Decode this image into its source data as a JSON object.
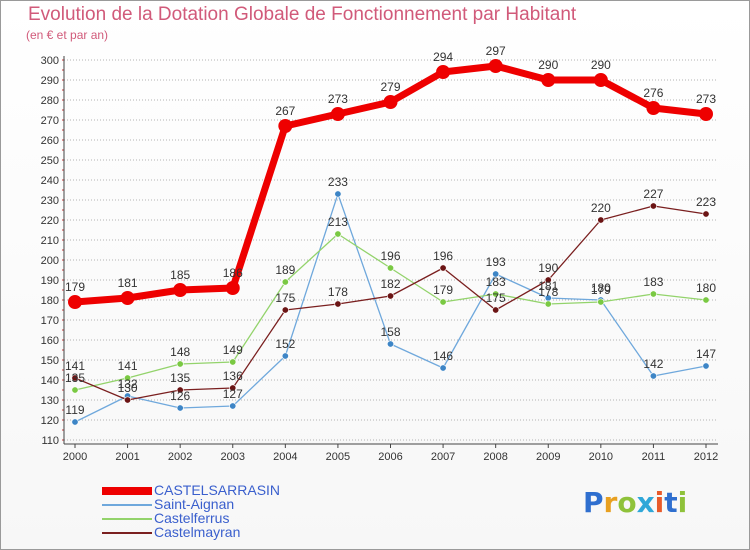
{
  "header": {
    "title": "Evolution de la Dotation Globale de Fonctionnement par Habitant",
    "subtitle": "(en € et par an)"
  },
  "logo": {
    "text": "Proxiti"
  },
  "colors": {
    "title": "#d15a7a",
    "grid": "#9a9a9a",
    "axis_text": "#333333",
    "value_text": "#333333"
  },
  "chart_data": {
    "type": "line",
    "title": "Evolution de la Dotation Globale de Fonctionnement par Habitant",
    "subtitle": "(en € et par an)",
    "xlabel": "",
    "ylabel": "",
    "x": [
      "2000",
      "2001",
      "2002",
      "2003",
      "2004",
      "2005",
      "2006",
      "2007",
      "2008",
      "2009",
      "2010",
      "2011",
      "2012"
    ],
    "ylim": [
      110,
      300
    ],
    "yticks": [
      110,
      120,
      130,
      140,
      150,
      160,
      170,
      180,
      190,
      200,
      210,
      220,
      230,
      240,
      250,
      260,
      270,
      280,
      290,
      300
    ],
    "grid": "horizontal dotted",
    "legend_position": "bottom-left",
    "series": [
      {
        "name": "CASTELSARRASIN",
        "values": [
          179,
          181,
          185,
          186,
          267,
          273,
          279,
          294,
          297,
          290,
          290,
          276,
          273
        ],
        "labels": [
          "179",
          "181",
          "185",
          "186",
          "267",
          "273",
          "279",
          "294",
          "297",
          "290",
          "290",
          "276",
          "273"
        ],
        "color": "#ee0000",
        "marker_color": "#ee0000",
        "width": "thick"
      },
      {
        "name": "Saint-Aignan",
        "values": [
          119,
          132,
          126,
          127,
          152,
          233,
          158,
          146,
          193,
          181,
          180,
          142,
          147
        ],
        "labels": [
          "119",
          "132",
          "126",
          "127",
          "152",
          "233",
          "158",
          "146",
          "193",
          "181",
          "180",
          "142",
          "147"
        ],
        "color": "#6fa8dc",
        "marker_color": "#3d85c6",
        "width": "thin"
      },
      {
        "name": "Castelferrus",
        "values": [
          135,
          141,
          148,
          149,
          189,
          213,
          196,
          179,
          183,
          178,
          179,
          183,
          180
        ],
        "labels": [
          "135",
          "141",
          "148",
          "149",
          "189",
          "213",
          "196",
          "179",
          "183",
          "178",
          "179",
          "183",
          "180"
        ],
        "color": "#93d36b",
        "marker_color": "#7ac943",
        "width": "thin"
      },
      {
        "name": "Castelmayran",
        "values": [
          141,
          130,
          135,
          136,
          175,
          178,
          182,
          196,
          175,
          190,
          220,
          227,
          223
        ],
        "labels": [
          "141",
          "130",
          "135",
          "136",
          "175",
          "178",
          "182",
          "196",
          "175",
          "190",
          "220",
          "227",
          "223"
        ],
        "color": "#7a1f1f",
        "marker_color": "#6b1414",
        "width": "thin"
      }
    ]
  }
}
